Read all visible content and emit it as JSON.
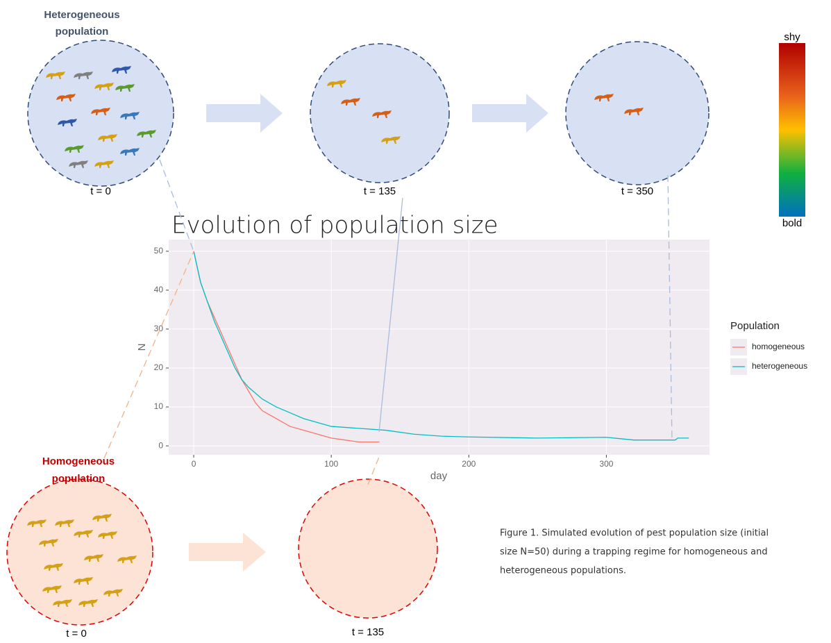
{
  "chart_data": {
    "type": "line",
    "title": "Evolution of population size",
    "x_label": "day",
    "y_label": "N",
    "xlim": [
      -18.2,
      375
    ],
    "xticks": [
      0,
      100,
      200,
      300
    ],
    "ylim": [
      -2.3,
      53
    ],
    "yticks": [
      0,
      10,
      20,
      30,
      40,
      50
    ],
    "grid": true,
    "legend_title": "Population",
    "legend_position": "right",
    "series": [
      {
        "name": "homogeneous",
        "color": "#F8766D",
        "x": [
          0,
          5,
          10,
          15,
          20,
          25,
          30,
          35,
          40,
          45,
          50,
          60,
          70,
          80,
          90,
          100,
          110,
          120,
          130,
          135
        ],
        "values": [
          50,
          42,
          37,
          33,
          29,
          25,
          21,
          17,
          14,
          11,
          9,
          7,
          5,
          4,
          3,
          2,
          1.5,
          1,
          1,
          1
        ]
      },
      {
        "name": "heterogeneous",
        "color": "#00BFC4",
        "x": [
          0,
          5,
          10,
          15,
          20,
          25,
          30,
          35,
          40,
          50,
          60,
          70,
          80,
          90,
          100,
          120,
          140,
          160,
          180,
          200,
          250,
          300,
          320,
          350,
          352,
          360
        ],
        "values": [
          50,
          42,
          37,
          32,
          28,
          24,
          20,
          17,
          15,
          12,
          10,
          8.5,
          7,
          6,
          5,
          4.5,
          4,
          3,
          2.5,
          2.3,
          2,
          2.2,
          1.5,
          1.5,
          2,
          2
        ]
      }
    ]
  },
  "diagram": {
    "heterogeneous_label": [
      "Heterogeneous",
      "population"
    ],
    "homogeneous_label": [
      "Homogeneous",
      "population"
    ],
    "time_labels": [
      "t = 0",
      "t = 135",
      "t = 350"
    ],
    "bottom_time_labels": [
      "t = 0",
      "t = 135"
    ],
    "colorbar_top": "shy",
    "colorbar_bottom": "bold",
    "caption": [
      "Figure 1. Simulated evolution of pest population size (initial",
      "size N=50) during a trapping regime for homogeneous and",
      "heterogeneous populations."
    ]
  }
}
